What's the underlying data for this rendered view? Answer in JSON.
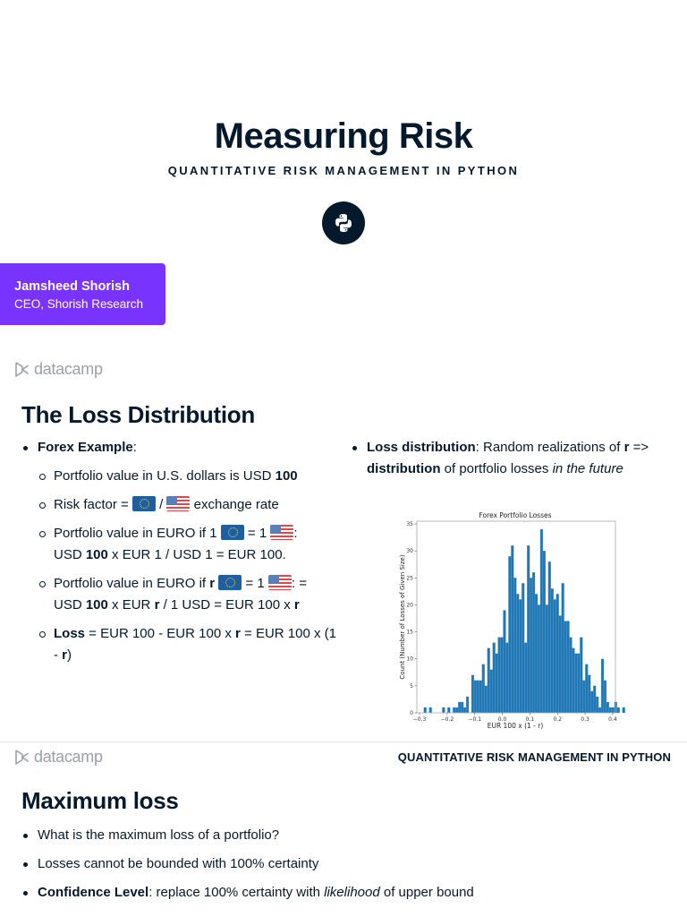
{
  "title_slide": {
    "title": "Measuring Risk",
    "subtitle": "QUANTITATIVE RISK MANAGEMENT IN PYTHON",
    "badge_icon": "python-icon",
    "author": {
      "name": "Jamsheed Shorish",
      "role": "CEO, Shorish Research"
    },
    "brand_color": "#7933ff"
  },
  "logo": {
    "text": "datacamp",
    "icon": "datacamp-logo-icon"
  },
  "loss_slide": {
    "heading": "The Loss Distribution",
    "left_bullets": {
      "forex_label": "Forex Example",
      "forex_colon": ":",
      "items": [
        {
          "pre": "Portfolio value in U.S. dollars is USD ",
          "bold": "100"
        },
        {
          "pre": "Risk factor = ",
          "mid": " / ",
          "post": " exchange rate"
        },
        {
          "pre": "Portfolio value in EURO if 1 ",
          "mid": " = 1 ",
          "post": ":",
          "line2_a": "USD ",
          "line2_b": "100",
          "line2_c": " x EUR 1 / USD 1 = EUR 100."
        },
        {
          "pre": "Portfolio value in EURO if ",
          "r": "r",
          "mid": " = 1 ",
          "post": ": =",
          "line2_a": "USD ",
          "line2_b": "100",
          "line2_c": " x EUR ",
          "line2_d": "r",
          "line2_e": " / 1 USD = EUR 100 x ",
          "line2_f": "r"
        },
        {
          "bold": "Loss",
          "a": " = EUR 100 - EUR 100 x ",
          "r": "r",
          "b": " = EUR 100 x (1 - ",
          "r2": "r",
          "c": ")"
        }
      ]
    },
    "right_bullets": {
      "label": "Loss distribution",
      "a": ": Random realizations of ",
      "r": "r",
      "b": " => ",
      "bold2": "distribution",
      "c": " of portfolio losses ",
      "italic": "in the future"
    }
  },
  "chart_data": {
    "type": "bar",
    "title": "Forex Portfolio Losses",
    "xlabel": "EUR 100 x (1 - r)",
    "ylabel": "Count (Number of Losses of Given Size)",
    "xlim": [
      -0.31,
      0.41
    ],
    "ylim": [
      0,
      35.5
    ],
    "xticks": [
      "-0.3",
      "-0.2",
      "-0.1",
      "0.0",
      "0.1",
      "0.2",
      "0.3",
      "0.4"
    ],
    "yticks": [
      "0",
      "5",
      "10",
      "15",
      "20",
      "25",
      "30",
      "35"
    ],
    "bar_color": "#1f77b4",
    "grid": false,
    "bin_start": -0.285,
    "bin_width": 0.0096,
    "values": [
      1,
      0,
      1,
      0,
      0,
      0,
      0,
      1,
      0,
      1,
      0,
      1,
      1,
      2,
      2,
      1,
      3,
      0,
      7,
      6,
      6,
      6,
      9,
      5,
      12,
      8,
      13,
      11,
      14,
      14,
      19,
      13,
      29,
      31,
      25,
      22,
      21,
      24,
      13,
      31,
      25,
      26,
      22,
      20,
      34,
      30,
      20,
      28,
      23,
      21,
      22,
      18,
      24,
      17,
      17,
      14,
      12,
      11,
      11,
      14,
      6,
      9,
      7,
      4,
      5,
      3,
      1,
      10,
      6,
      2,
      1,
      1,
      2,
      1,
      0,
      1,
      0,
      3,
      2
    ],
    "max_value": 34
  },
  "page_header": {
    "course": "QUANTITATIVE RISK MANAGEMENT IN PYTHON"
  },
  "max_loss_slide": {
    "heading": "Maximum loss",
    "bullets": [
      {
        "text": "What is the maximum loss of a portfolio?"
      },
      {
        "text": "Losses cannot be bounded with 100% certainty"
      },
      {
        "bold": "Confidence Level",
        "a": ": replace 100% certainty with ",
        "italic": "likelihood",
        "b": " of upper bound"
      }
    ]
  }
}
